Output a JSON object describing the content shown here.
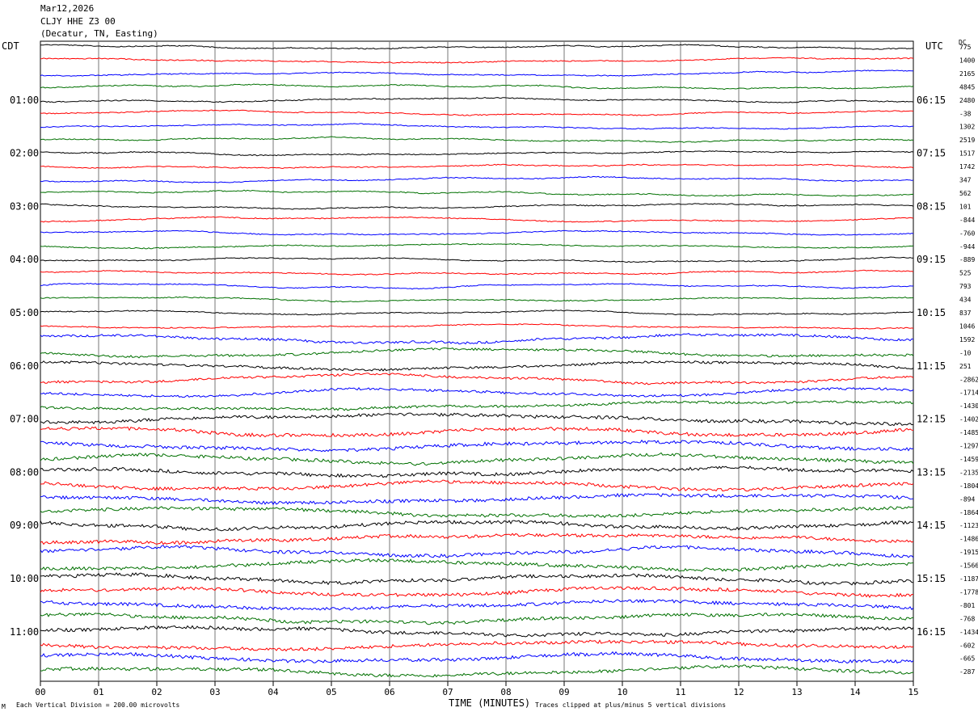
{
  "header": {
    "date": "Mar12,2026",
    "station": "CLJY HHE Z3 00",
    "location": "(Decatur, TN, Easting)"
  },
  "labels": {
    "left_tz": "CDT",
    "right_tz": "UTC",
    "dc": "DC",
    "xlabel": "TIME (MINUTES)",
    "scale_note": "Each Vertical Division = 200.00 microvolts",
    "clip_note": "Traces clipped at plus/minus 5 vertical divisions",
    "corner_mark": "M"
  },
  "chart_data": {
    "type": "line",
    "title": "CLJY HHE Z3 00",
    "xlabel": "TIME (MINUTES)",
    "xlim": [
      0,
      15
    ],
    "x_ticks": [
      "00",
      "01",
      "02",
      "03",
      "04",
      "05",
      "06",
      "07",
      "08",
      "09",
      "10",
      "11",
      "12",
      "13",
      "14",
      "15"
    ],
    "left_hour_labels": [
      "01:00",
      "02:00",
      "03:00",
      "04:00",
      "05:00",
      "06:00",
      "07:00",
      "08:00",
      "09:00",
      "10:00",
      "11:00"
    ],
    "right_hour_labels": [
      "06:15",
      "07:15",
      "08:15",
      "09:15",
      "10:15",
      "11:15",
      "12:15",
      "13:15",
      "14:15",
      "15:15",
      "16:15"
    ],
    "trace_colors": [
      "#000000",
      "#ff0000",
      "#0000ff",
      "#007000"
    ],
    "dc_offsets": [
      "775",
      "1400",
      "2165",
      "4845",
      "2480",
      "-38",
      "1302",
      "2519",
      "1517",
      "1742",
      "347",
      "562",
      "101",
      "-844",
      "-760",
      "-944",
      "-889",
      "525",
      "793",
      "434",
      "837",
      "1046",
      "1592",
      "-10",
      "251",
      "-2862",
      "-1714",
      "-1430",
      "-1402",
      "-1485",
      "-1297",
      "-1459",
      "-2135",
      "-1804",
      "-894",
      "-1864",
      "-1123",
      "-1486",
      "-1915",
      "-1566",
      "-1187",
      "-1778",
      "-801",
      "-768",
      "-1434",
      "-602",
      "-665",
      "-287"
    ],
    "unit": "microvolts",
    "vertical_division": 200.0
  }
}
